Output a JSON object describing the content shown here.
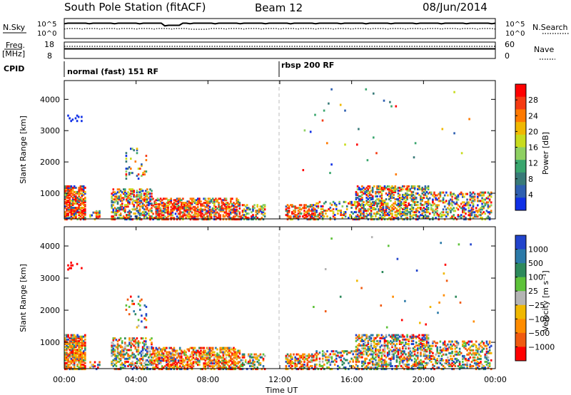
{
  "header": {
    "station": "South Pole Station (fitACF)",
    "beam": "Beam 12",
    "date": "08/Jun/2014"
  },
  "status_panels": {
    "nsky_label": "N.Sky",
    "nsearch_label": "N.Search",
    "nave_label": "Nave",
    "cpid_label": "CPID",
    "freq_label_1": "Freq.",
    "freq_label_2": "[MHz]",
    "noise_ticks_left": [
      "10^5",
      "10^0"
    ],
    "noise_ticks_right": [
      "10^5",
      "10^0"
    ],
    "freq_ticks": [
      "18",
      "8"
    ],
    "nave_ticks": [
      "60",
      "0"
    ],
    "cpid_segments": [
      {
        "start_hour": 0,
        "label": "normal (fast) 151 RF"
      },
      {
        "start_hour": 12,
        "label": "rbsp 200 RF"
      }
    ]
  },
  "chart_data": [
    {
      "type": "heatmap",
      "name": "power-panel",
      "ylabel": "Slant Range [km]",
      "xlabel": "",
      "xlim_hours": [
        0,
        24
      ],
      "ylim": [
        180,
        4600
      ],
      "y_ticks": [
        1000,
        2000,
        3000,
        4000
      ],
      "colorbar": {
        "label": "Power [dB]",
        "ticks": [
          "28",
          "24",
          "20",
          "16",
          "12",
          "8",
          "4"
        ],
        "colors": [
          "#ff0000",
          "#f53a12",
          "#ff7a00",
          "#f0b800",
          "#c8dc1e",
          "#8ed062",
          "#3aa66e",
          "#387a78",
          "#2e5fb0",
          "#1030e6"
        ]
      }
    },
    {
      "type": "heatmap",
      "name": "velocity-panel",
      "ylabel": "Slant Range [km]",
      "xlabel": "Time UT",
      "xlim_hours": [
        0,
        24
      ],
      "ylim": [
        180,
        4600
      ],
      "y_ticks": [
        1000,
        2000,
        3000,
        4000
      ],
      "colorbar": {
        "label": "Velocity [m s⁻¹]",
        "ticks": [
          "1000",
          "500",
          "100",
          "25",
          "−25",
          "−100",
          "−500",
          "−1000"
        ],
        "colors": [
          "#2244cc",
          "#2c7aa8",
          "#2e8a5c",
          "#5ec23a",
          "#b4b4b4",
          "#f0b800",
          "#ff8c00",
          "#f05a10",
          "#ff0000"
        ]
      }
    }
  ],
  "x_axis": {
    "ticks": [
      "00:00",
      "04:00",
      "08:00",
      "12:00",
      "16:00",
      "20:00",
      "00:00"
    ],
    "label": "Time UT"
  }
}
